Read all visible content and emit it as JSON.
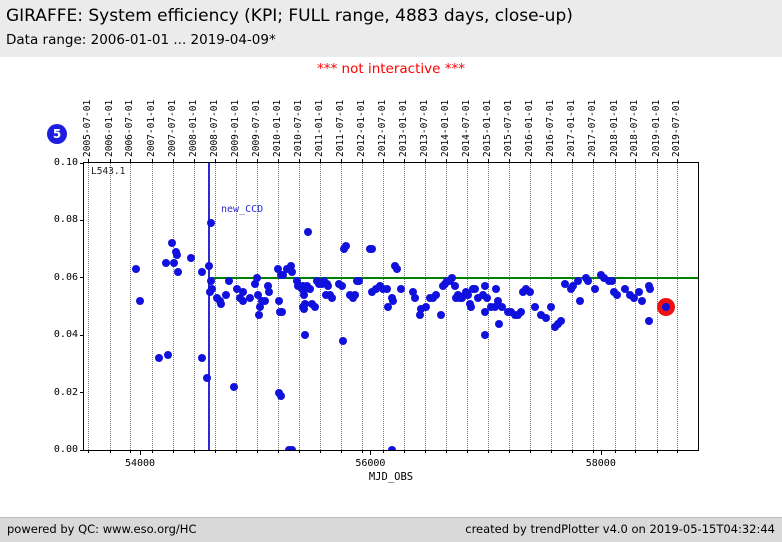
{
  "header": {
    "title": "GIRAFFE: System efficiency (KPI; FULL range, 4883 days, close-up)",
    "subtitle": "Data range: 2006-01-01 ... 2019-04-09*"
  },
  "notice": "*** not interactive ***",
  "badge": {
    "label": "5",
    "color": "#1e1ee0"
  },
  "footer": {
    "left": "powered by QC: www.eso.org/HC",
    "right": "created by trendPlotter v4.0 on 2019-05-15T04:32:44"
  },
  "chart_data": {
    "type": "scatter",
    "title": "GIRAFFE: System efficiency (KPI; FULL range, 4883 days, close-up)",
    "xlabel": "MJD_OBS",
    "ylabel": "",
    "x_range": [
      53514,
      58844
    ],
    "y_range": [
      0,
      0.1
    ],
    "grid": "vertical-dotted",
    "point_color": "#1111dd",
    "y_ticks": [
      {
        "label": "0.10",
        "v": 0.1
      },
      {
        "label": "0.08",
        "v": 0.08
      },
      {
        "label": "0.06",
        "v": 0.06
      },
      {
        "label": "0.04",
        "v": 0.04
      },
      {
        "label": "0.02",
        "v": 0.02
      },
      {
        "label": "0.00",
        "v": 0.0
      }
    ],
    "x_major_ticks": [
      {
        "label": "54000",
        "v": 54000
      },
      {
        "label": "56000",
        "v": 56000
      },
      {
        "label": "58000",
        "v": 58000
      }
    ],
    "date_ticks": [
      {
        "label": "2005-07-01",
        "mjd": 53552
      },
      {
        "label": "2006-01-01",
        "mjd": 53736
      },
      {
        "label": "2006-07-01",
        "mjd": 53917
      },
      {
        "label": "2007-01-01",
        "mjd": 54101
      },
      {
        "label": "2007-07-01",
        "mjd": 54282
      },
      {
        "label": "2008-01-01",
        "mjd": 54466
      },
      {
        "label": "2008-07-01",
        "mjd": 54648
      },
      {
        "label": "2009-01-01",
        "mjd": 54832
      },
      {
        "label": "2009-07-01",
        "mjd": 55013
      },
      {
        "label": "2010-01-01",
        "mjd": 55197
      },
      {
        "label": "2010-07-01",
        "mjd": 55378
      },
      {
        "label": "2011-01-01",
        "mjd": 55562
      },
      {
        "label": "2011-07-01",
        "mjd": 55743
      },
      {
        "label": "2012-01-01",
        "mjd": 55927
      },
      {
        "label": "2012-07-01",
        "mjd": 56109
      },
      {
        "label": "2013-01-01",
        "mjd": 56293
      },
      {
        "label": "2013-07-01",
        "mjd": 56474
      },
      {
        "label": "2014-01-01",
        "mjd": 56658
      },
      {
        "label": "2014-07-01",
        "mjd": 56839
      },
      {
        "label": "2015-01-01",
        "mjd": 57023
      },
      {
        "label": "2015-07-01",
        "mjd": 57204
      },
      {
        "label": "2016-01-01",
        "mjd": 57388
      },
      {
        "label": "2016-07-01",
        "mjd": 57570
      },
      {
        "label": "2017-01-01",
        "mjd": 57754
      },
      {
        "label": "2017-07-01",
        "mjd": 57935
      },
      {
        "label": "2018-01-01",
        "mjd": 58119
      },
      {
        "label": "2018-07-01",
        "mjd": 58300
      },
      {
        "label": "2019-01-01",
        "mjd": 58484
      },
      {
        "label": "2019-07-01",
        "mjd": 58665
      }
    ],
    "annotations": {
      "inset_label": "L543.1",
      "vline": {
        "mjd": 54590,
        "label": "new_CCD",
        "color": "#2b2bd0"
      },
      "hline": {
        "y": 0.06,
        "x_start": 54620,
        "color": "#008000"
      }
    },
    "highlight_point": {
      "x": 58570,
      "y": 0.05,
      "ring_color": "#ee1111"
    },
    "points": [
      [
        53965,
        0.063
      ],
      [
        54000,
        0.052
      ],
      [
        54165,
        0.032
      ],
      [
        54243,
        0.033
      ],
      [
        54226,
        0.065
      ],
      [
        54278,
        0.072
      ],
      [
        54295,
        0.065
      ],
      [
        54313,
        0.069
      ],
      [
        54321,
        0.068
      ],
      [
        54330,
        0.062
      ],
      [
        54443,
        0.067
      ],
      [
        54538,
        0.062
      ],
      [
        54538,
        0.032
      ],
      [
        54581,
        0.025
      ],
      [
        54599,
        0.064
      ],
      [
        54616,
        0.079
      ],
      [
        54620,
        0.059
      ],
      [
        54608,
        0.055
      ],
      [
        54625,
        0.056
      ],
      [
        54668,
        0.053
      ],
      [
        54694,
        0.052
      ],
      [
        54704,
        0.051
      ],
      [
        54746,
        0.054
      ],
      [
        54772,
        0.059
      ],
      [
        54816,
        0.022
      ],
      [
        54842,
        0.056
      ],
      [
        54870,
        0.053
      ],
      [
        54894,
        0.055
      ],
      [
        54898,
        0.052
      ],
      [
        54955,
        0.053
      ],
      [
        54998,
        0.058
      ],
      [
        55016,
        0.06
      ],
      [
        55025,
        0.054
      ],
      [
        55033,
        0.047
      ],
      [
        55042,
        0.05
      ],
      [
        55059,
        0.052
      ],
      [
        55085,
        0.052
      ],
      [
        55111,
        0.057
      ],
      [
        55120,
        0.055
      ],
      [
        55198,
        0.063
      ],
      [
        55207,
        0.052
      ],
      [
        55215,
        0.048
      ],
      [
        55224,
        0.061
      ],
      [
        55233,
        0.048
      ],
      [
        55241,
        0.061
      ],
      [
        55276,
        0.063
      ],
      [
        55207,
        0.02
      ],
      [
        55224,
        0.019
      ],
      [
        55290,
        0.0
      ],
      [
        55320,
        0.0
      ],
      [
        55310,
        0.064
      ],
      [
        55319,
        0.062
      ],
      [
        55362,
        0.059
      ],
      [
        55371,
        0.057
      ],
      [
        55388,
        0.057
      ],
      [
        55406,
        0.056
      ],
      [
        55414,
        0.057
      ],
      [
        55423,
        0.054
      ],
      [
        55432,
        0.056
      ],
      [
        55449,
        0.057
      ],
      [
        55414,
        0.05
      ],
      [
        55423,
        0.049
      ],
      [
        55432,
        0.051
      ],
      [
        55458,
        0.076
      ],
      [
        55475,
        0.056
      ],
      [
        55492,
        0.051
      ],
      [
        55518,
        0.05
      ],
      [
        55432,
        0.04
      ],
      [
        55536,
        0.059
      ],
      [
        55553,
        0.058
      ],
      [
        55579,
        0.058
      ],
      [
        55596,
        0.059
      ],
      [
        55614,
        0.054
      ],
      [
        55622,
        0.058
      ],
      [
        55631,
        0.057
      ],
      [
        55648,
        0.054
      ],
      [
        55665,
        0.053
      ],
      [
        55726,
        0.058
      ],
      [
        55752,
        0.057
      ],
      [
        55760,
        0.038
      ],
      [
        55769,
        0.07
      ],
      [
        55786,
        0.071
      ],
      [
        55821,
        0.054
      ],
      [
        55847,
        0.053
      ],
      [
        55864,
        0.054
      ],
      [
        55881,
        0.059
      ],
      [
        55899,
        0.059
      ],
      [
        55993,
        0.07
      ],
      [
        56011,
        0.07
      ],
      [
        56011,
        0.055
      ],
      [
        56046,
        0.056
      ],
      [
        56081,
        0.057
      ],
      [
        56107,
        0.056
      ],
      [
        56141,
        0.056
      ],
      [
        56150,
        0.05
      ],
      [
        56185,
        0.053
      ],
      [
        56194,
        0.052
      ],
      [
        56190,
        0.0
      ],
      [
        56211,
        0.064
      ],
      [
        56228,
        0.063
      ],
      [
        56263,
        0.056
      ],
      [
        56368,
        0.055
      ],
      [
        56385,
        0.053
      ],
      [
        56428,
        0.047
      ],
      [
        56437,
        0.049
      ],
      [
        56480,
        0.05
      ],
      [
        56515,
        0.053
      ],
      [
        56541,
        0.053
      ],
      [
        56567,
        0.054
      ],
      [
        56611,
        0.047
      ],
      [
        56628,
        0.057
      ],
      [
        56645,
        0.058
      ],
      [
        56662,
        0.059
      ],
      [
        56688,
        0.059
      ],
      [
        56706,
        0.06
      ],
      [
        56732,
        0.057
      ],
      [
        56741,
        0.053
      ],
      [
        56758,
        0.054
      ],
      [
        56775,
        0.053
      ],
      [
        56793,
        0.053
      ],
      [
        56819,
        0.054
      ],
      [
        56828,
        0.055
      ],
      [
        56845,
        0.054
      ],
      [
        56862,
        0.051
      ],
      [
        56871,
        0.05
      ],
      [
        56888,
        0.056
      ],
      [
        56906,
        0.056
      ],
      [
        56932,
        0.053
      ],
      [
        56975,
        0.054
      ],
      [
        56993,
        0.057
      ],
      [
        56993,
        0.048
      ],
      [
        56993,
        0.04
      ],
      [
        57010,
        0.053
      ],
      [
        57045,
        0.05
      ],
      [
        57080,
        0.05
      ],
      [
        57088,
        0.056
      ],
      [
        57106,
        0.052
      ],
      [
        57114,
        0.044
      ],
      [
        57140,
        0.05
      ],
      [
        57193,
        0.048
      ],
      [
        57219,
        0.048
      ],
      [
        57254,
        0.047
      ],
      [
        57280,
        0.047
      ],
      [
        57306,
        0.048
      ],
      [
        57323,
        0.055
      ],
      [
        57349,
        0.056
      ],
      [
        57384,
        0.055
      ],
      [
        57427,
        0.05
      ],
      [
        57479,
        0.047
      ],
      [
        57523,
        0.046
      ],
      [
        57566,
        0.05
      ],
      [
        57601,
        0.043
      ],
      [
        57627,
        0.044
      ],
      [
        57653,
        0.045
      ],
      [
        57688,
        0.058
      ],
      [
        57740,
        0.056
      ],
      [
        57757,
        0.057
      ],
      [
        57800,
        0.059
      ],
      [
        57817,
        0.052
      ],
      [
        57869,
        0.06
      ],
      [
        57886,
        0.059
      ],
      [
        57947,
        0.056
      ],
      [
        58000,
        0.061
      ],
      [
        58026,
        0.06
      ],
      [
        58069,
        0.059
      ],
      [
        58095,
        0.059
      ],
      [
        58112,
        0.055
      ],
      [
        58138,
        0.054
      ],
      [
        58208,
        0.056
      ],
      [
        58251,
        0.054
      ],
      [
        58286,
        0.053
      ],
      [
        58329,
        0.055
      ],
      [
        58355,
        0.052
      ],
      [
        58416,
        0.057
      ],
      [
        58424,
        0.056
      ],
      [
        58416,
        0.045
      ]
    ]
  }
}
